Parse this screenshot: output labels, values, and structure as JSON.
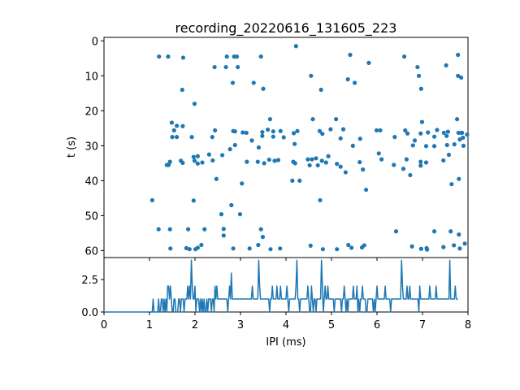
{
  "chart_data": [
    {
      "type": "scatter",
      "title": "recording_20220616_131605_223",
      "xlabel": "",
      "ylabel": "t (s)",
      "xlim": [
        0,
        8
      ],
      "ylim": [
        62,
        -1
      ],
      "y_inverted": true,
      "yticks": [
        "0",
        "10",
        "20",
        "30",
        "40",
        "50",
        "60"
      ],
      "color": "#1f77b4",
      "points": [
        [
          1.21,
          4.5
        ],
        [
          1.41,
          4.5
        ],
        [
          1.74,
          4.8
        ],
        [
          2.7,
          4.5
        ],
        [
          2.86,
          4.5
        ],
        [
          2.92,
          4.5
        ],
        [
          3.45,
          4.5
        ],
        [
          4.22,
          1.5
        ],
        [
          5.41,
          4.0
        ],
        [
          5.82,
          6.3
        ],
        [
          6.6,
          4.5
        ],
        [
          6.89,
          7.5
        ],
        [
          7.52,
          7.0
        ],
        [
          7.78,
          4.0
        ],
        [
          2.43,
          7.5
        ],
        [
          2.68,
          7.5
        ],
        [
          2.94,
          7.5
        ],
        [
          3.29,
          12.0
        ],
        [
          3.5,
          13.7
        ],
        [
          4.55,
          10.0
        ],
        [
          4.77,
          14.0
        ],
        [
          5.36,
          11.0
        ],
        [
          5.51,
          12.0
        ],
        [
          6.92,
          10.0
        ],
        [
          6.97,
          13.7
        ],
        [
          7.78,
          10.0
        ],
        [
          7.85,
          10.5
        ],
        [
          2.83,
          12.0
        ],
        [
          1.72,
          14.0
        ],
        [
          1.99,
          18.0
        ],
        [
          3.65,
          22.4
        ],
        [
          4.59,
          22.4
        ],
        [
          5.1,
          22.4
        ],
        [
          6.99,
          23.2
        ],
        [
          7.76,
          22.4
        ],
        [
          7.85,
          26.3
        ],
        [
          1.49,
          23.4
        ],
        [
          1.54,
          25.6
        ],
        [
          1.6,
          24.3
        ],
        [
          1.5,
          27.5
        ],
        [
          1.6,
          27.5
        ],
        [
          1.73,
          24.4
        ],
        [
          1.93,
          27.5
        ],
        [
          2.44,
          25.6
        ],
        [
          2.38,
          27.5
        ],
        [
          2.88,
          25.9
        ],
        [
          2.84,
          25.8
        ],
        [
          3.05,
          26.2
        ],
        [
          3.13,
          26.3
        ],
        [
          3.25,
          28.5
        ],
        [
          3.48,
          26.1
        ],
        [
          3.48,
          27.2
        ],
        [
          3.6,
          25.4
        ],
        [
          3.72,
          25.9
        ],
        [
          3.72,
          27.4
        ],
        [
          3.88,
          25.8
        ],
        [
          3.95,
          27.6
        ],
        [
          4.17,
          26.4
        ],
        [
          4.25,
          25.8
        ],
        [
          4.74,
          25.8
        ],
        [
          4.8,
          26.6
        ],
        [
          4.98,
          25.3
        ],
        [
          5.26,
          25.3
        ],
        [
          5.2,
          27.9
        ],
        [
          5.63,
          28.0
        ],
        [
          5.99,
          25.6
        ],
        [
          6.07,
          25.6
        ],
        [
          6.39,
          27.5
        ],
        [
          6.62,
          25.6
        ],
        [
          6.67,
          26.5
        ],
        [
          6.83,
          28.5
        ],
        [
          6.96,
          26.5
        ],
        [
          7.12,
          26.2
        ],
        [
          7.26,
          27.4
        ],
        [
          7.32,
          25.5
        ],
        [
          7.47,
          26.3
        ],
        [
          7.53,
          27.2
        ],
        [
          7.56,
          26.0
        ],
        [
          7.79,
          26.3
        ],
        [
          7.82,
          28.2
        ],
        [
          7.87,
          26.3
        ],
        [
          7.89,
          27.7
        ],
        [
          7.7,
          29.6
        ],
        [
          7.9,
          30.0
        ],
        [
          7.98,
          26.8
        ],
        [
          2.77,
          31.0
        ],
        [
          2.88,
          29.8
        ],
        [
          3.4,
          30.5
        ],
        [
          4.19,
          29.5
        ],
        [
          5.47,
          30.0
        ],
        [
          6.79,
          29.9
        ],
        [
          7.08,
          30.1
        ],
        [
          7.26,
          30.1
        ],
        [
          7.54,
          29.8
        ],
        [
          1.97,
          33.2
        ],
        [
          2.06,
          33.0
        ],
        [
          2.31,
          32.5
        ],
        [
          2.39,
          34.2
        ],
        [
          2.6,
          32.7
        ],
        [
          3.14,
          34.6
        ],
        [
          3.38,
          34.6
        ],
        [
          3.52,
          35.0
        ],
        [
          3.63,
          34.0
        ],
        [
          3.75,
          34.3
        ],
        [
          3.83,
          34.1
        ],
        [
          4.16,
          34.6
        ],
        [
          4.48,
          33.9
        ],
        [
          4.57,
          33.9
        ],
        [
          4.66,
          33.6
        ],
        [
          4.79,
          34.3
        ],
        [
          4.93,
          33.0
        ],
        [
          5.12,
          35.2
        ],
        [
          5.62,
          34.7
        ],
        [
          6.04,
          32.2
        ],
        [
          6.1,
          33.9
        ],
        [
          6.65,
          33.9
        ],
        [
          6.37,
          35.5
        ],
        [
          6.96,
          34.6
        ],
        [
          7.08,
          34.8
        ],
        [
          7.46,
          34.2
        ],
        [
          7.58,
          32.6
        ],
        [
          1.38,
          35.5
        ],
        [
          1.42,
          35.5
        ],
        [
          1.45,
          34.6
        ],
        [
          1.69,
          34.3
        ],
        [
          1.73,
          34.9
        ],
        [
          1.99,
          34.3
        ],
        [
          2.06,
          35.1
        ],
        [
          2.16,
          34.8
        ],
        [
          4.2,
          35.0
        ],
        [
          4.52,
          35.6
        ],
        [
          4.7,
          35.6
        ],
        [
          4.88,
          34.8
        ],
        [
          5.2,
          36.0
        ],
        [
          5.31,
          37.6
        ],
        [
          5.69,
          36.8
        ],
        [
          6.58,
          36.6
        ],
        [
          6.73,
          38.4
        ],
        [
          6.96,
          35.7
        ],
        [
          1.06,
          45.6
        ],
        [
          2.47,
          39.5
        ],
        [
          3.03,
          40.8
        ],
        [
          4.14,
          40.0
        ],
        [
          4.3,
          40.0
        ],
        [
          5.76,
          42.6
        ],
        [
          7.64,
          41.0
        ],
        [
          7.8,
          39.5
        ],
        [
          1.97,
          45.7
        ],
        [
          2.8,
          47.0
        ],
        [
          4.75,
          45.6
        ],
        [
          2.58,
          49.6
        ],
        [
          2.99,
          49.6
        ],
        [
          2.63,
          53.8
        ],
        [
          2.63,
          55.7
        ],
        [
          3.45,
          53.9
        ],
        [
          3.49,
          56.1
        ],
        [
          1.2,
          53.9
        ],
        [
          1.45,
          53.9
        ],
        [
          1.85,
          53.9
        ],
        [
          2.21,
          53.9
        ],
        [
          6.42,
          54.5
        ],
        [
          7.26,
          54.5
        ],
        [
          7.62,
          54.5
        ],
        [
          7.8,
          55.4
        ],
        [
          1.46,
          59.4
        ],
        [
          1.81,
          59.3
        ],
        [
          1.88,
          59.6
        ],
        [
          2.01,
          59.6
        ],
        [
          2.06,
          59.2
        ],
        [
          2.14,
          58.4
        ],
        [
          2.84,
          59.4
        ],
        [
          3.2,
          59.4
        ],
        [
          3.39,
          58.4
        ],
        [
          3.66,
          59.6
        ],
        [
          3.87,
          59.4
        ],
        [
          4.54,
          58.6
        ],
        [
          4.81,
          59.6
        ],
        [
          5.12,
          59.6
        ],
        [
          5.37,
          58.4
        ],
        [
          5.44,
          59.2
        ],
        [
          5.67,
          59.1
        ],
        [
          5.72,
          58.5
        ],
        [
          6.77,
          58.8
        ],
        [
          6.97,
          59.5
        ],
        [
          7.09,
          59.3
        ],
        [
          7.1,
          59.7
        ],
        [
          7.46,
          59.0
        ],
        [
          7.69,
          58.5
        ],
        [
          7.93,
          58.0
        ],
        [
          7.82,
          59.4
        ]
      ]
    },
    {
      "type": "line",
      "title": "",
      "xlabel": "IPI (ms)",
      "ylabel": "",
      "xlim": [
        0,
        8
      ],
      "ylim": [
        0,
        4.2
      ],
      "xticks": [
        "0",
        "1",
        "2",
        "3",
        "4",
        "5",
        "6",
        "7",
        "8"
      ],
      "yticks": [
        "0.0",
        "2.5"
      ],
      "color": "#1f77b4",
      "x_step": 0.02,
      "values": [
        0,
        0,
        0,
        0,
        0,
        0,
        0,
        0,
        0,
        0,
        0,
        0,
        0,
        0,
        0,
        0,
        0,
        0,
        0,
        0,
        0,
        0,
        0,
        0,
        0,
        0,
        0,
        0,
        0,
        0,
        0,
        0,
        0,
        0,
        0,
        0,
        0,
        0,
        0,
        0,
        0,
        0,
        0,
        0,
        0,
        0,
        0,
        0,
        0,
        0,
        0,
        0,
        0,
        0,
        1,
        0,
        0,
        0,
        0,
        0,
        1,
        0,
        0,
        1,
        1,
        0,
        1,
        0,
        1,
        0,
        2,
        2,
        1,
        2,
        1,
        0,
        0,
        1,
        1,
        0,
        0,
        0,
        1,
        1,
        0,
        1,
        1,
        1,
        0,
        1,
        1,
        1,
        2,
        1,
        2,
        1,
        4,
        2,
        1,
        1,
        2,
        0,
        1,
        1,
        1,
        0,
        1,
        0,
        1,
        0,
        1,
        0,
        0,
        1,
        0,
        1,
        1,
        1,
        0,
        1,
        1,
        0,
        2,
        1,
        2,
        1,
        1,
        1,
        1,
        1,
        1,
        1,
        1,
        1,
        1,
        1,
        0,
        1,
        2,
        1,
        3,
        1,
        1,
        1,
        1,
        1,
        1,
        1,
        1,
        1,
        1,
        1,
        1,
        1,
        1,
        1,
        1,
        1,
        1,
        1,
        1,
        1,
        1,
        2,
        1,
        1,
        1,
        1,
        1,
        1,
        4,
        2,
        1,
        1,
        1,
        1,
        1,
        1,
        1,
        1,
        1,
        1,
        0,
        1,
        1,
        2,
        1,
        1,
        1,
        1,
        2,
        1,
        1,
        1,
        2,
        1,
        1,
        1,
        1,
        1,
        1,
        2,
        1,
        0,
        1,
        1,
        1,
        1,
        1,
        1,
        1,
        2,
        4,
        1,
        1,
        0,
        1,
        1,
        1,
        1,
        1,
        1,
        1,
        1,
        2,
        1,
        0,
        0,
        2,
        1,
        0,
        1,
        1,
        0,
        1,
        1,
        1,
        1,
        1,
        4,
        2,
        0,
        1,
        2,
        1,
        1,
        2,
        1,
        1,
        1,
        1,
        1,
        1,
        0,
        1,
        1,
        1,
        1,
        1,
        1,
        1,
        0,
        1,
        1,
        2,
        1,
        0,
        1,
        0,
        1,
        1,
        1,
        1,
        1,
        2,
        1,
        1,
        1,
        2,
        0,
        1,
        0,
        1,
        1,
        2,
        1,
        1,
        1,
        0,
        0,
        1,
        1,
        1,
        1,
        1,
        1,
        0,
        1,
        0,
        1,
        2,
        1,
        1,
        1,
        1,
        1,
        1,
        1,
        1,
        2,
        1,
        1,
        1,
        1,
        1,
        0,
        1,
        1,
        1,
        1,
        1,
        1,
        1,
        1,
        1,
        1,
        1,
        4,
        2,
        1,
        1,
        1,
        1,
        2,
        1,
        1,
        2,
        1,
        1,
        1,
        1,
        1,
        1,
        1,
        1,
        1,
        0,
        2,
        1,
        1,
        1,
        1,
        1,
        1,
        1,
        1,
        1,
        1,
        2,
        1,
        1,
        1,
        1,
        1,
        1,
        2,
        1,
        1,
        1,
        1,
        1,
        1,
        1,
        1,
        1,
        1,
        1,
        1,
        1,
        1,
        4,
        1,
        1,
        1,
        1,
        1,
        2,
        1,
        1,
        1
      ]
    }
  ]
}
